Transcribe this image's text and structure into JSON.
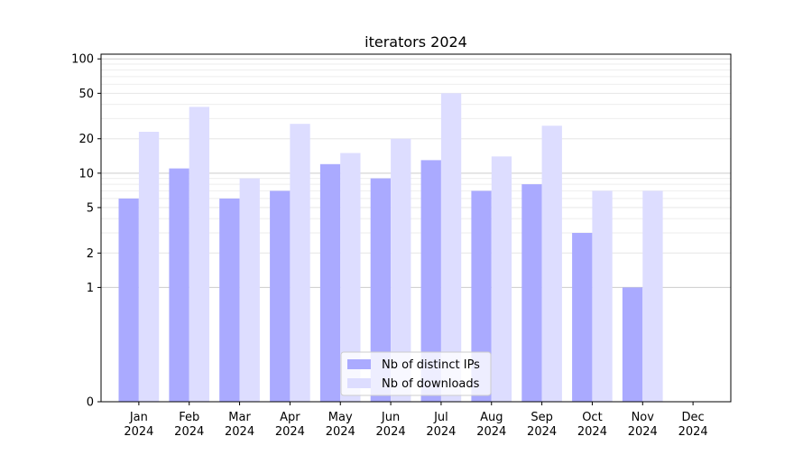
{
  "chart_data": {
    "type": "bar",
    "title": "iterators 2024",
    "xlabel": "",
    "ylabel": "",
    "y_scale": "symlog",
    "ylim": [
      0,
      110
    ],
    "y_ticks": [
      0,
      1,
      2,
      5,
      10,
      20,
      50,
      100
    ],
    "grid": true,
    "legend_position": "bottom-center",
    "categories": [
      [
        "Jan",
        "2024"
      ],
      [
        "Feb",
        "2024"
      ],
      [
        "Mar",
        "2024"
      ],
      [
        "Apr",
        "2024"
      ],
      [
        "May",
        "2024"
      ],
      [
        "Jun",
        "2024"
      ],
      [
        "Jul",
        "2024"
      ],
      [
        "Aug",
        "2024"
      ],
      [
        "Sep",
        "2024"
      ],
      [
        "Oct",
        "2024"
      ],
      [
        "Nov",
        "2024"
      ],
      [
        "Dec",
        "2024"
      ]
    ],
    "series": [
      {
        "name": "Nb of distinct IPs",
        "color": "#aaaaff",
        "values": [
          6,
          11,
          6,
          7,
          12,
          9,
          13,
          7,
          8,
          3,
          1,
          0
        ]
      },
      {
        "name": "Nb of downloads",
        "color": "#ddddff",
        "values": [
          23,
          38,
          9,
          27,
          15,
          20,
          50,
          14,
          26,
          7,
          7,
          0
        ]
      }
    ]
  }
}
